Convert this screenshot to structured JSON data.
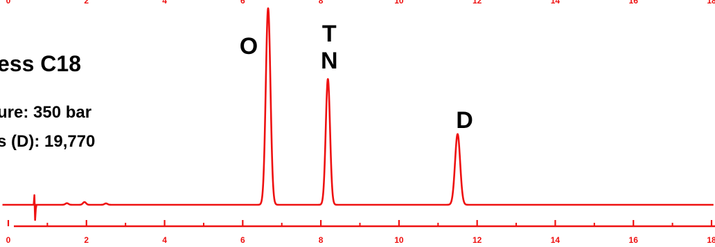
{
  "chart_data": {
    "type": "line",
    "title": "",
    "xlabel": "",
    "ylabel": "",
    "xlim": [
      -0.2,
      18
    ],
    "ylim": [
      0,
      1
    ],
    "x_ticks": [
      0,
      2,
      4,
      6,
      8,
      10,
      12,
      14,
      16,
      18
    ],
    "grid": false,
    "color": "#ee1111",
    "annotations": [
      "ess C18",
      "ure: 350 bar",
      "s (D): 19,770"
    ],
    "series": [
      {
        "peaks": [
          {
            "label": "O",
            "time": 6.65,
            "height": 1.0,
            "width": 0.06
          },
          {
            "label": "T\nN",
            "time": 8.18,
            "height": 0.64,
            "width": 0.055
          },
          {
            "label": "D",
            "time": 11.5,
            "height": 0.36,
            "width": 0.065
          }
        ],
        "baseline_features": [
          {
            "time": 0.65,
            "height": 0.12,
            "kind": "dip"
          },
          {
            "time": 1.5,
            "height": 0.008,
            "kind": "bump"
          },
          {
            "time": 1.95,
            "height": 0.014,
            "kind": "bump"
          },
          {
            "time": 2.5,
            "height": 0.007,
            "kind": "bump"
          }
        ]
      }
    ]
  }
}
